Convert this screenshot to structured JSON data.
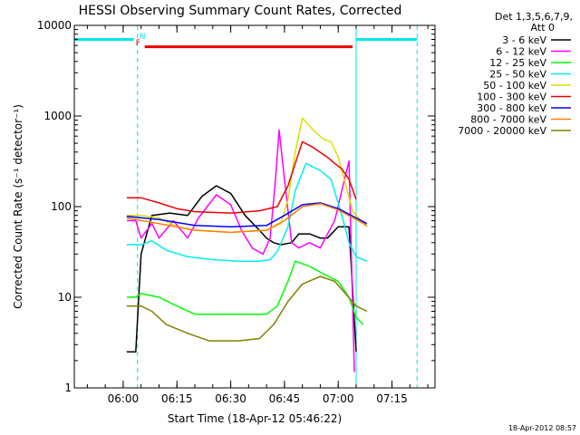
{
  "chart_data": {
    "type": "line",
    "title": "HESSI Observing Summary Count Rates, Corrected",
    "xlabel": "Start Time (18-Apr-12 05:46:22)",
    "ylabel": "Corrected Count Rate (s⁻¹ detector⁻¹)",
    "yscale": "log",
    "ylim": [
      1,
      10000
    ],
    "xlim": [
      "05:46:22",
      "07:27:00"
    ],
    "x_ticks": [
      "06:00",
      "06:15",
      "06:30",
      "06:45",
      "07:00",
      "07:15"
    ],
    "y_ticks": [
      "1",
      "10",
      "100",
      "1000",
      "10000"
    ],
    "grid": false,
    "legend_position": "right",
    "legend_header": [
      "Det 1,3,5,6,7,9,",
      "Att 0"
    ],
    "timestamp": "18-Apr-2012 08:57",
    "markers": {
      "night_label": "N",
      "flare_label": "F",
      "night_bars": [
        {
          "start": "05:46:22",
          "end": "06:03:00"
        },
        {
          "start": "07:05:00",
          "end": "07:22:00"
        }
      ],
      "flare_bar": {
        "start": "06:06:00",
        "end": "07:04:00",
        "value": 5800
      },
      "night_boundaries": [
        "05:46:22",
        "06:04:00",
        "07:05:00",
        "07:22:00"
      ],
      "night_color": "#00e5ee",
      "flare_color": "#ee0000"
    },
    "series": [
      {
        "name": "3 - 6 keV",
        "color": "#000000",
        "points": [
          [
            "06:01:00",
            2.5
          ],
          [
            "06:03:30",
            2.5
          ],
          [
            "06:05:00",
            30
          ],
          [
            "06:08:00",
            80
          ],
          [
            "06:13:00",
            85
          ],
          [
            "06:18:00",
            80
          ],
          [
            "06:22:00",
            130
          ],
          [
            "06:26:00",
            170
          ],
          [
            "06:30:00",
            140
          ],
          [
            "06:34:00",
            80
          ],
          [
            "06:38:00",
            55
          ],
          [
            "06:40:00",
            45
          ],
          [
            "06:42:00",
            40
          ],
          [
            "06:44:00",
            38
          ],
          [
            "06:47:00",
            40
          ],
          [
            "06:49:00",
            50
          ],
          [
            "06:52:00",
            50
          ],
          [
            "06:55:00",
            45
          ],
          [
            "06:57:00",
            45
          ],
          [
            "07:00:00",
            60
          ],
          [
            "07:03:00",
            60
          ],
          [
            "07:05:00",
            2.5
          ]
        ]
      },
      {
        "name": "6 - 12 keV",
        "color": "#ff00ff",
        "points": [
          [
            "06:01:00",
            70
          ],
          [
            "06:03:30",
            70
          ],
          [
            "06:05:00",
            45
          ],
          [
            "06:08:00",
            65
          ],
          [
            "06:10:00",
            45
          ],
          [
            "06:14:00",
            70
          ],
          [
            "06:18:00",
            45
          ],
          [
            "06:21:00",
            75
          ],
          [
            "06:26:00",
            135
          ],
          [
            "06:30:00",
            105
          ],
          [
            "06:33:00",
            55
          ],
          [
            "06:36:00",
            35
          ],
          [
            "06:39:00",
            30
          ],
          [
            "06:41:00",
            45
          ],
          [
            "06:42:30",
            200
          ],
          [
            "06:43:30",
            700
          ],
          [
            "06:45:00",
            200
          ],
          [
            "06:47:00",
            40
          ],
          [
            "06:49:00",
            35
          ],
          [
            "06:52:00",
            40
          ],
          [
            "06:55:00",
            35
          ],
          [
            "06:57:00",
            50
          ],
          [
            "06:59:00",
            70
          ],
          [
            "07:01:00",
            150
          ],
          [
            "07:03:00",
            320
          ],
          [
            "07:04:30",
            1.5
          ]
        ]
      },
      {
        "name": "12 - 25 keV",
        "color": "#00ff00",
        "points": [
          [
            "06:01:00",
            10
          ],
          [
            "06:03:30",
            10
          ],
          [
            "06:05:00",
            11
          ],
          [
            "06:10:00",
            10
          ],
          [
            "06:15:00",
            8
          ],
          [
            "06:20:00",
            6.5
          ],
          [
            "06:30:00",
            6.5
          ],
          [
            "06:40:00",
            6.5
          ],
          [
            "06:43:00",
            8
          ],
          [
            "06:46:00",
            15
          ],
          [
            "06:48:00",
            25
          ],
          [
            "06:52:00",
            22
          ],
          [
            "06:56:00",
            18
          ],
          [
            "07:00:00",
            15
          ],
          [
            "07:03:00",
            10
          ],
          [
            "07:05:00",
            6
          ],
          [
            "07:07:00",
            5
          ]
        ]
      },
      {
        "name": "25 - 50 keV",
        "color": "#00eeee",
        "points": [
          [
            "06:01:00",
            38
          ],
          [
            "06:03:30",
            38
          ],
          [
            "06:05:00",
            38
          ],
          [
            "06:08:00",
            42
          ],
          [
            "06:12:00",
            33
          ],
          [
            "06:18:00",
            28
          ],
          [
            "06:25:00",
            26
          ],
          [
            "06:32:00",
            25
          ],
          [
            "06:38:00",
            25
          ],
          [
            "06:41:00",
            26
          ],
          [
            "06:43:00",
            32
          ],
          [
            "06:46:00",
            60
          ],
          [
            "06:48:00",
            150
          ],
          [
            "06:51:00",
            300
          ],
          [
            "06:55:00",
            250
          ],
          [
            "06:58:00",
            200
          ],
          [
            "07:01:00",
            80
          ],
          [
            "07:03:00",
            40
          ],
          [
            "07:05:00",
            28
          ],
          [
            "07:08:00",
            25
          ]
        ]
      },
      {
        "name": "50 - 100 keV",
        "color": "#dddd00",
        "points": [
          [
            "06:01:00",
            80
          ],
          [
            "06:05:00",
            80
          ],
          [
            "06:10:00",
            75
          ],
          [
            "06:15:00",
            60
          ],
          [
            "06:20:00",
            55
          ],
          [
            "06:30:00",
            52
          ],
          [
            "06:40:00",
            55
          ],
          [
            "06:44:00",
            65
          ],
          [
            "06:46:00",
            120
          ],
          [
            "06:48:00",
            400
          ],
          [
            "06:50:00",
            950
          ],
          [
            "06:53:00",
            700
          ],
          [
            "06:56:00",
            550
          ],
          [
            "06:58:00",
            520
          ],
          [
            "07:00:00",
            350
          ],
          [
            "07:02:00",
            180
          ],
          [
            "07:04:00",
            90
          ],
          [
            "07:05:00",
            80
          ],
          [
            "07:08:00",
            60
          ]
        ]
      },
      {
        "name": "100 - 300 keV",
        "color": "#ee0000",
        "points": [
          [
            "06:01:00",
            125
          ],
          [
            "06:05:00",
            125
          ],
          [
            "06:10:00",
            110
          ],
          [
            "06:15:00",
            95
          ],
          [
            "06:20:00",
            88
          ],
          [
            "06:30:00",
            85
          ],
          [
            "06:38:00",
            90
          ],
          [
            "06:43:00",
            100
          ],
          [
            "06:46:00",
            170
          ],
          [
            "06:48:00",
            300
          ],
          [
            "06:50:00",
            520
          ],
          [
            "06:53:00",
            450
          ],
          [
            "06:57:00",
            350
          ],
          [
            "06:59:00",
            300
          ],
          [
            "07:01:00",
            260
          ],
          [
            "07:03:00",
            200
          ],
          [
            "07:05:00",
            120
          ]
        ]
      },
      {
        "name": "300 - 800 keV",
        "color": "#0000ff",
        "points": [
          [
            "06:01:00",
            78
          ],
          [
            "06:10:00",
            72
          ],
          [
            "06:20:00",
            62
          ],
          [
            "06:30:00",
            60
          ],
          [
            "06:40:00",
            62
          ],
          [
            "06:45:00",
            80
          ],
          [
            "06:50:00",
            105
          ],
          [
            "06:55:00",
            110
          ],
          [
            "07:00:00",
            95
          ],
          [
            "07:05:00",
            75
          ],
          [
            "07:08:00",
            65
          ]
        ]
      },
      {
        "name": "800 - 7000 keV",
        "color": "#ff7f00",
        "points": [
          [
            "06:01:00",
            75
          ],
          [
            "06:10:00",
            65
          ],
          [
            "06:20:00",
            55
          ],
          [
            "06:30:00",
            52
          ],
          [
            "06:40:00",
            55
          ],
          [
            "06:45:00",
            70
          ],
          [
            "06:50:00",
            100
          ],
          [
            "06:55:00",
            108
          ],
          [
            "07:00:00",
            92
          ],
          [
            "07:05:00",
            72
          ],
          [
            "07:08:00",
            62
          ]
        ]
      },
      {
        "name": "7000 - 20000 keV",
        "color": "#808000",
        "points": [
          [
            "06:01:00",
            8
          ],
          [
            "06:05:00",
            8
          ],
          [
            "06:08:00",
            7
          ],
          [
            "06:12:00",
            5
          ],
          [
            "06:18:00",
            4
          ],
          [
            "06:24:00",
            3.3
          ],
          [
            "06:32:00",
            3.3
          ],
          [
            "06:38:00",
            3.5
          ],
          [
            "06:42:00",
            5
          ],
          [
            "06:46:00",
            9
          ],
          [
            "06:50:00",
            14
          ],
          [
            "06:55:00",
            17
          ],
          [
            "06:59:00",
            15
          ],
          [
            "07:02:00",
            11
          ],
          [
            "07:05:00",
            8
          ],
          [
            "07:08:00",
            7
          ]
        ]
      }
    ]
  }
}
